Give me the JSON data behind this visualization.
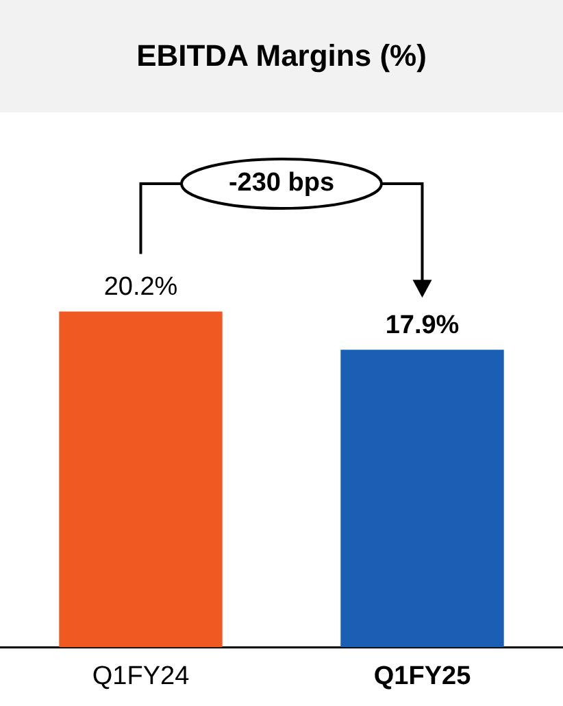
{
  "chart_data": {
    "type": "bar",
    "title": "EBITDA Margins (%)",
    "categories": [
      "Q1FY24",
      "Q1FY25"
    ],
    "values": [
      20.2,
      17.9
    ],
    "colors": [
      "#f05a22",
      "#1a5fb4"
    ],
    "value_labels": [
      "20.2%",
      "17.9%"
    ],
    "tick_labels": "x",
    "grid": false,
    "legend": false,
    "annotations": [
      "-230 bps"
    ]
  }
}
